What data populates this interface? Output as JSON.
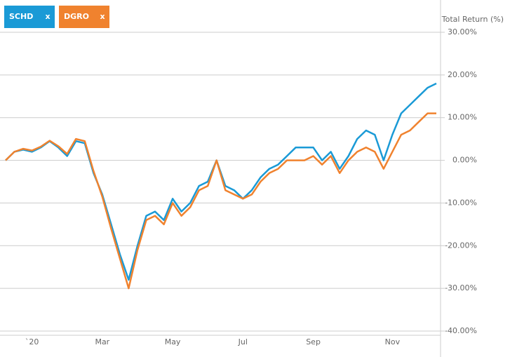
{
  "chart_data": {
    "type": "line",
    "y_axis_label": "Total Return (%)",
    "legend_close": "x",
    "categories": [
      null,
      null,
      null,
      "`20",
      null,
      null,
      null,
      null,
      null,
      null,
      null,
      "Mar",
      null,
      null,
      null,
      null,
      null,
      null,
      null,
      "May",
      null,
      null,
      null,
      null,
      null,
      null,
      null,
      "Jul",
      null,
      null,
      null,
      null,
      null,
      null,
      null,
      "Sep",
      null,
      null,
      null,
      null,
      null,
      null,
      null,
      null,
      "Nov",
      null,
      null,
      null,
      null,
      null
    ],
    "series": [
      {
        "name": "SCHD",
        "color": "#1a9ad6",
        "values": [
          0,
          2,
          2.5,
          2,
          3,
          4.5,
          3,
          1,
          4.5,
          4,
          -3,
          -8,
          -15,
          -22,
          -28,
          -20,
          -13,
          -12,
          -14,
          -9,
          -12,
          -10,
          -6,
          -5,
          0,
          -6,
          -7,
          -9,
          -7,
          -4,
          -2,
          -1,
          1,
          3,
          3,
          3,
          0,
          2,
          -2,
          1,
          5,
          7,
          6,
          0,
          6,
          11,
          13,
          15,
          17,
          18
        ]
      },
      {
        "name": "DGRO",
        "color": "#f0822e",
        "values": [
          0,
          2,
          2.7,
          2.3,
          3.2,
          4.6,
          3.3,
          1.5,
          5,
          4.5,
          -2.5,
          -8.5,
          -16,
          -23,
          -30,
          -21,
          -14,
          -13,
          -15,
          -10,
          -13,
          -11,
          -7,
          -6,
          0,
          -7,
          -8,
          -9,
          -8,
          -5,
          -3,
          -2,
          0,
          0,
          0,
          1,
          -1,
          1,
          -3,
          0,
          2,
          3,
          2,
          -2,
          2,
          6,
          7,
          9,
          11,
          11
        ]
      }
    ],
    "ylim": [
      -40,
      30
    ],
    "yticks": [
      {
        "value": -40,
        "label": "-40.00%"
      },
      {
        "value": -30,
        "label": "-30.00%"
      },
      {
        "value": -20,
        "label": "-20.00%"
      },
      {
        "value": -10,
        "label": "-10.00%"
      },
      {
        "value": 0,
        "label": "0.00%"
      },
      {
        "value": 10,
        "label": "10.00%"
      },
      {
        "value": 20,
        "label": "20.00%"
      },
      {
        "value": 30,
        "label": "30.00%"
      }
    ],
    "grid": true
  }
}
